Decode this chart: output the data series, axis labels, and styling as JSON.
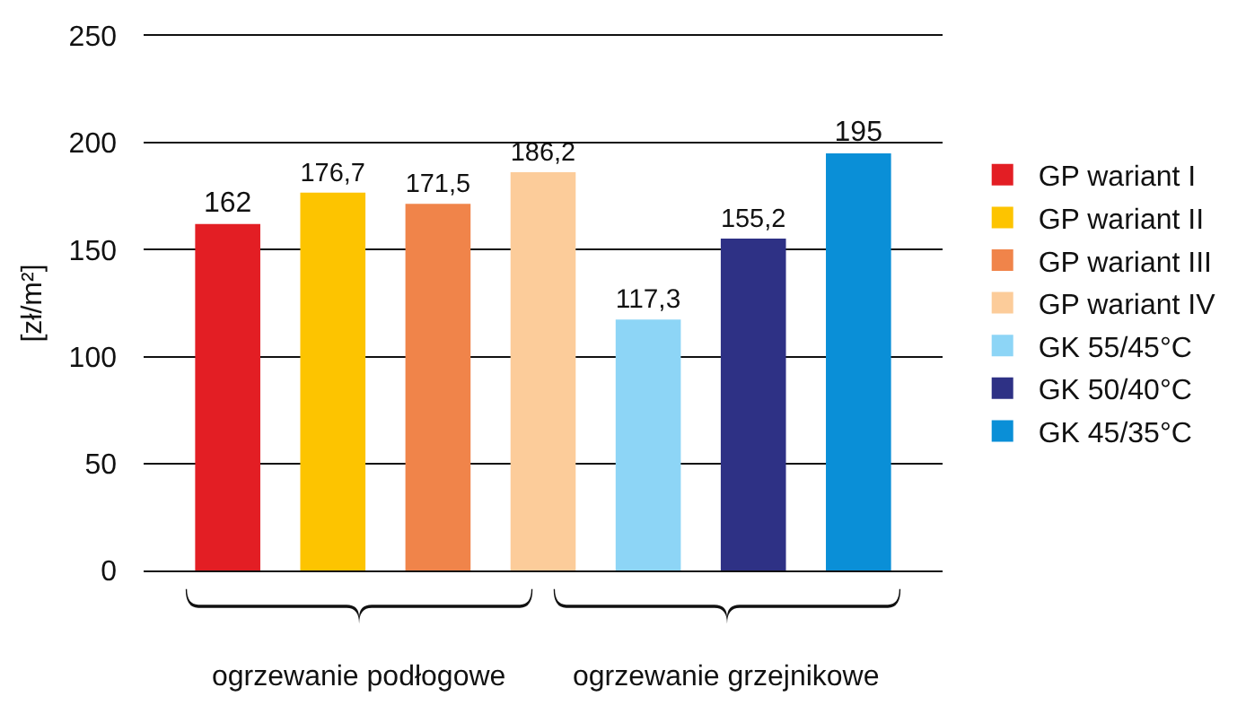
{
  "chart_data": {
    "type": "bar",
    "ylabel": "[zł/m²]",
    "categories": [
      null,
      null,
      null,
      null,
      null,
      null,
      null
    ],
    "series": [
      {
        "name": "GP wariant I",
        "color": "#e31e24",
        "values": [
          162,
          null,
          null,
          null,
          null,
          null,
          null
        ],
        "value_labels": [
          "162",
          null,
          null,
          null,
          null,
          null,
          null
        ]
      },
      {
        "name": "GP wariant II",
        "color": "#fdc400",
        "values": [
          null,
          176.7,
          null,
          null,
          null,
          null,
          null
        ],
        "value_labels": [
          null,
          "176,7",
          null,
          null,
          null,
          null,
          null
        ]
      },
      {
        "name": "GP wariant III",
        "color": "#f0844a",
        "values": [
          null,
          null,
          171.5,
          null,
          null,
          null,
          null
        ],
        "value_labels": [
          null,
          null,
          "171,5",
          null,
          null,
          null,
          null
        ]
      },
      {
        "name": "GP wariant IV",
        "color": "#fccc9a",
        "values": [
          null,
          null,
          null,
          186.2,
          null,
          null,
          null
        ],
        "value_labels": [
          null,
          null,
          null,
          "186,2",
          null,
          null,
          null
        ]
      },
      {
        "name": "GK 55/45°C",
        "color": "#8dd5f6",
        "values": [
          null,
          null,
          null,
          null,
          117.3,
          null,
          null
        ],
        "value_labels": [
          null,
          null,
          null,
          null,
          "117,3",
          null,
          null
        ]
      },
      {
        "name": "GK 50/40°C",
        "color": "#2e3185",
        "values": [
          null,
          null,
          null,
          null,
          null,
          155.2,
          null
        ],
        "value_labels": [
          null,
          null,
          null,
          null,
          null,
          "155,2",
          null
        ]
      },
      {
        "name": "GK 45/35°C",
        "color": "#0a8fd7",
        "values": [
          null,
          null,
          null,
          null,
          null,
          null,
          195
        ],
        "value_labels": [
          null,
          null,
          null,
          null,
          null,
          null,
          "195"
        ]
      }
    ],
    "ylim": [
      0,
      250
    ],
    "yticks": [
      0,
      50,
      100,
      150,
      200,
      250
    ],
    "grid": "y",
    "legend": "right",
    "annotations": [
      "ogrzewanie podłogowe",
      "ogrzewanie grzejnikowe"
    ]
  }
}
